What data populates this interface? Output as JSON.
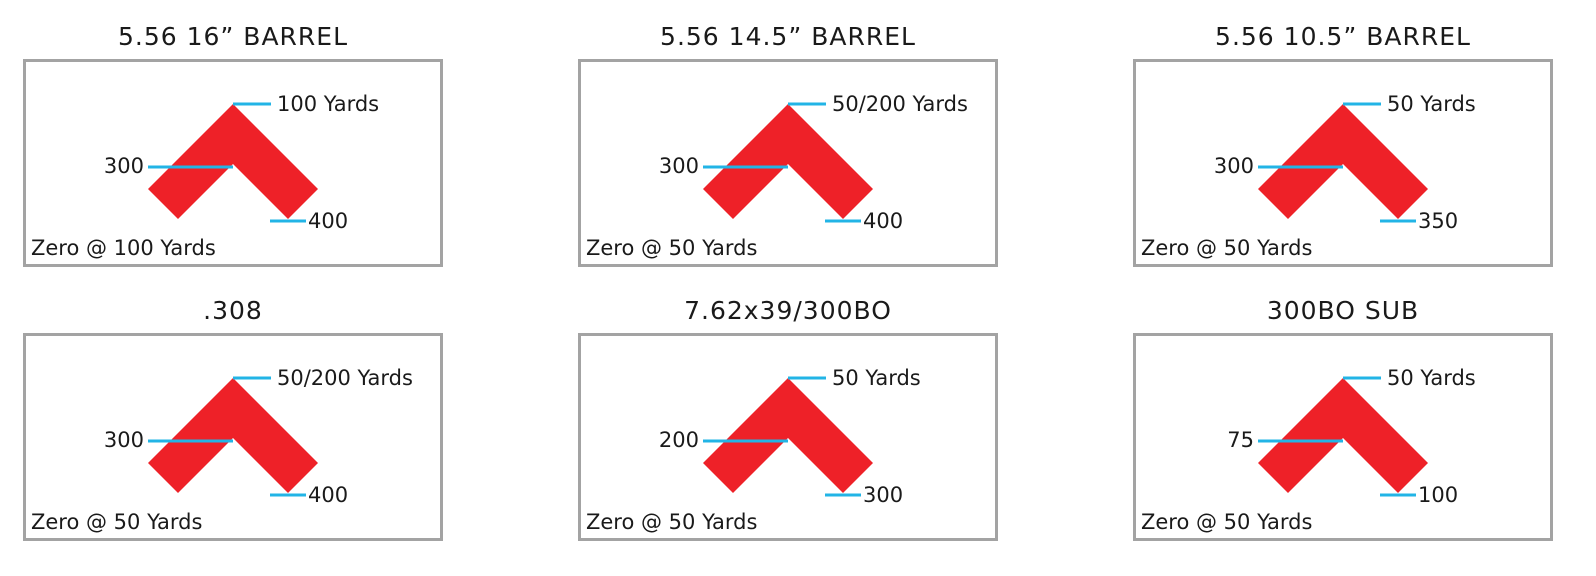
{
  "panels": [
    {
      "title": "5.56 16” BARREL",
      "top_label": "100 Yards",
      "mid_label": "300",
      "bottom_label": "400",
      "zero": "Zero @ 100 Yards"
    },
    {
      "title": "5.56 14.5” BARREL",
      "top_label": "50/200 Yards",
      "mid_label": "300",
      "bottom_label": "400",
      "zero": "Zero @ 50 Yards"
    },
    {
      "title": "5.56 10.5” BARREL",
      "top_label": "50 Yards",
      "mid_label": "300",
      "bottom_label": "350",
      "zero": "Zero @ 50 Yards"
    },
    {
      "title": ".308",
      "top_label": "50/200 Yards",
      "mid_label": "300",
      "bottom_label": "400",
      "zero": "Zero @ 50 Yards"
    },
    {
      "title": "7.62x39/300BO",
      "top_label": "50 Yards",
      "mid_label": "200",
      "bottom_label": "300",
      "zero": "Zero @ 50 Yards"
    },
    {
      "title": "300BO SUB",
      "top_label": "50 Yards",
      "mid_label": "75",
      "bottom_label": "100",
      "zero": "Zero @ 50 Yards"
    }
  ]
}
